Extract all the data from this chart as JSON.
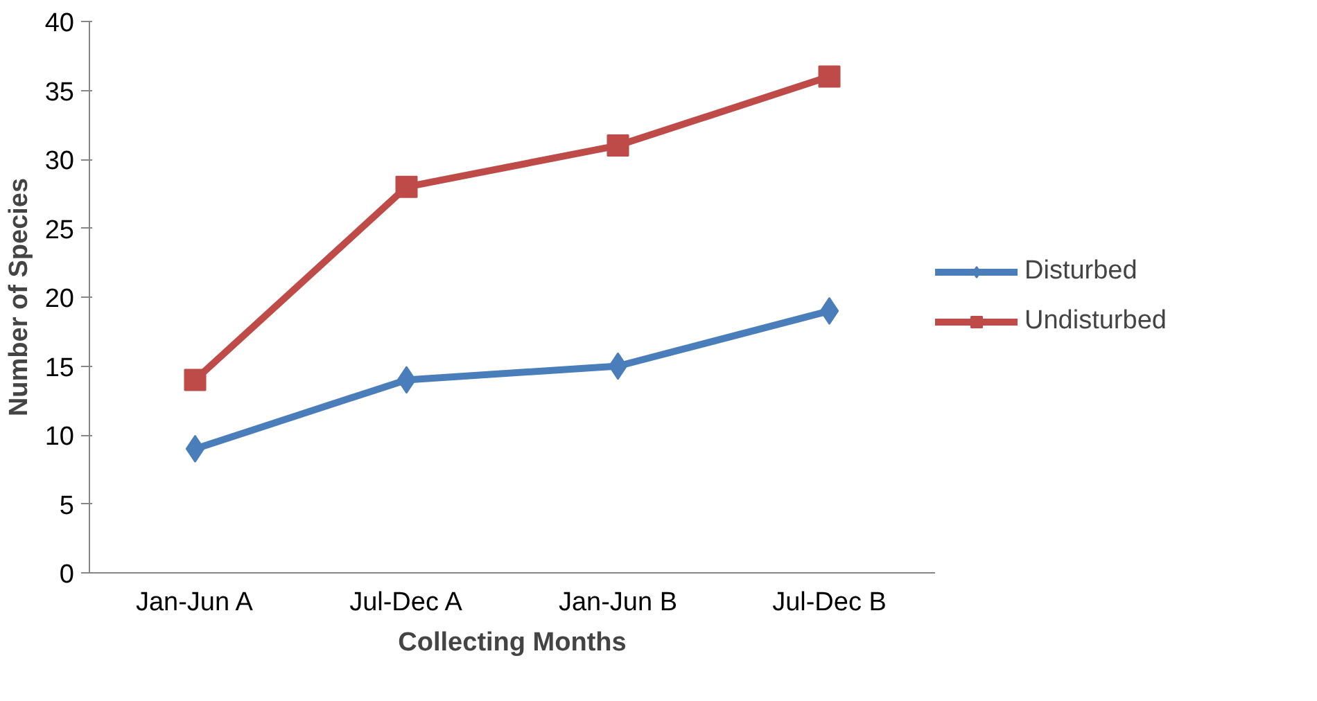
{
  "chart_data": {
    "type": "line",
    "xlabel": "Collecting Months",
    "ylabel": "Number of Species",
    "categories": [
      "Jan-Jun A",
      "Jul-Dec A",
      "Jan-Jun B",
      "Jul-Dec B"
    ],
    "series": [
      {
        "name": "Disturbed",
        "color": "#4a7ebb",
        "marker": "diamond",
        "values": [
          9,
          14,
          15,
          19
        ]
      },
      {
        "name": "Undisturbed",
        "color": "#be4b48",
        "marker": "square",
        "values": [
          14,
          28,
          31,
          36
        ]
      }
    ],
    "ylim": [
      0,
      40
    ],
    "yticks": [
      0,
      5,
      10,
      15,
      20,
      25,
      30,
      35,
      40
    ],
    "grid": false,
    "legend": "right",
    "line_style": "solid"
  }
}
